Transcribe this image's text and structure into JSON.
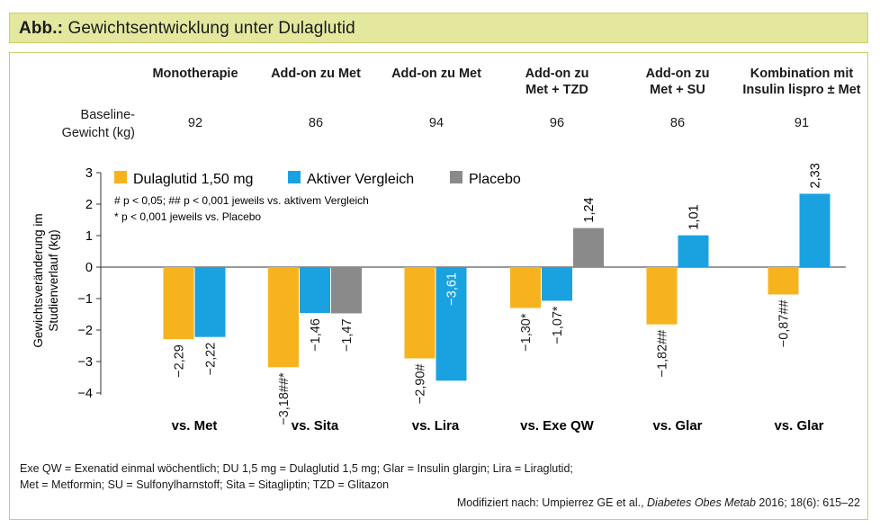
{
  "figure": {
    "title_prefix": "Abb.:",
    "title": "Gewichtsentwicklung unter Dulaglutid"
  },
  "colors": {
    "title_bg": "#e4e89e",
    "border": "#c9cf6a",
    "dulaglutid": "#f7b31d",
    "aktiver_vergleich": "#1aa2e0",
    "placebo": "#8a8a8a"
  },
  "columns": [
    {
      "head": "Monotherapie",
      "baseline": "92"
    },
    {
      "head": "Add-on zu Met",
      "baseline": "86"
    },
    {
      "head": "Add-on zu Met",
      "baseline": "94"
    },
    {
      "head": "Add-on zu\nMet + TZD",
      "baseline": "96"
    },
    {
      "head": "Add-on zu\nMet + SU",
      "baseline": "86"
    },
    {
      "head": "Kombination mit\nInsulin lispro ± Met",
      "baseline": "91"
    }
  ],
  "baseline_label_line1": "Baseline-",
  "baseline_label_line2": "Gewicht (kg)",
  "notes": {
    "line1": "# p < 0,05; ## p < 0,001 jeweils vs. aktivem Vergleich",
    "line2": "* p < 0,001 jeweils vs. Placebo"
  },
  "chart_data": {
    "type": "bar",
    "ylabel_line1": "Gewichtsveränderung im",
    "ylabel_line2": "Studienverlauf (kg)",
    "ylim": [
      -4,
      3
    ],
    "yticks": [
      3,
      2,
      1,
      0,
      -1,
      -2,
      -3,
      -4
    ],
    "categories": [
      "vs. Met",
      "vs. Sita",
      "vs. Lira",
      "vs. Exe QW",
      "vs. Glar",
      "vs. Glar"
    ],
    "legend": [
      "Dulaglutid 1,50 mg",
      "Aktiver Vergleich",
      "Placebo"
    ],
    "series": [
      {
        "name": "Dulaglutid 1,50 mg",
        "key": "dulaglutid",
        "values": [
          -2.29,
          -3.18,
          -2.9,
          -1.3,
          -1.82,
          -0.87
        ],
        "labels": [
          "−2,29",
          "−3,18##*",
          "−2,90#",
          "−1,30*",
          "−1,82##",
          "−0,87##"
        ]
      },
      {
        "name": "Aktiver Vergleich",
        "key": "aktiver_vergleich",
        "values": [
          -2.22,
          -1.46,
          -3.61,
          -1.07,
          1.01,
          2.33
        ],
        "labels": [
          "−2,22",
          "−1,46",
          "−3,61",
          "−1,07*",
          "1,01",
          "2,33"
        ]
      },
      {
        "name": "Placebo",
        "key": "placebo",
        "values": [
          null,
          -1.47,
          null,
          1.24,
          null,
          null
        ],
        "labels": [
          "",
          "−1,47",
          "",
          "1,24",
          "",
          ""
        ]
      }
    ]
  },
  "footnotes": {
    "line1": "Exe QW = Exenatid einmal wöchentlich; DU 1,5 mg = Dulaglutid 1,5 mg; Glar = Insulin glargin; Lira = Liraglutid;",
    "line2": "Met = Metformin; SU = Sulfonylharnstoff; Sita = Sitagliptin; TZD = Glitazon",
    "source_prefix": "Modifiziert nach: Umpierrez GE et al., ",
    "source_journal": "Diabetes Obes Metab",
    "source_suffix": " 2016; 18(6): 615–22"
  }
}
